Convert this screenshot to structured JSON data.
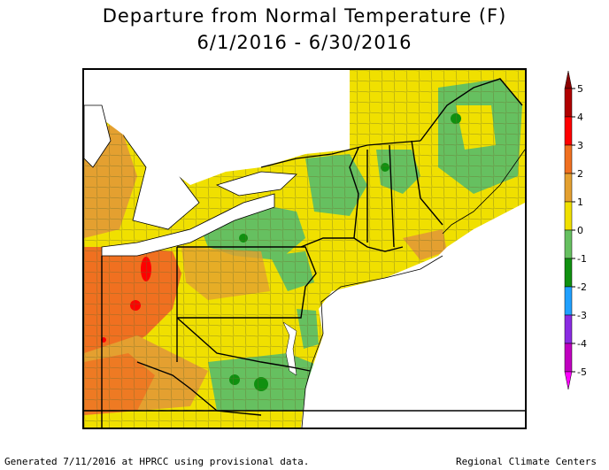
{
  "title": {
    "line1": "Departure from Normal Temperature (F)",
    "line2": "6/1/2016 - 6/30/2016"
  },
  "footer": {
    "left": "Generated 7/11/2016 at HPRCC using provisional data.",
    "right": "Regional Climate Centers"
  },
  "legend": {
    "ticks": [
      "5",
      "4",
      "3",
      "2",
      "1",
      "0",
      "-1",
      "-2",
      "-3",
      "-4",
      "-5"
    ],
    "bins": [
      {
        "range": "4 to 5",
        "color": "#b00000"
      },
      {
        "range": "3 to 4",
        "color": "#ff0000"
      },
      {
        "range": "2 to 3",
        "color": "#f07020"
      },
      {
        "range": "1 to 2",
        "color": "#e4a030"
      },
      {
        "range": "0 to 1",
        "color": "#f0e000"
      },
      {
        "range": "-1 to 0",
        "color": "#66c060"
      },
      {
        "range": "-2 to -1",
        "color": "#109010"
      },
      {
        "range": "-3 to -2",
        "color": "#20a0ff"
      },
      {
        "range": "-4 to -3",
        "color": "#8a2be2"
      },
      {
        "range": "-5 to -4",
        "color": "#c000c0"
      }
    ],
    "arrow_top_color": "#8b0000",
    "arrow_bottom_color": "#ff00ff"
  },
  "map": {
    "region": "Northeast United States",
    "period": "6/1/2016 - 6/30/2016",
    "variable": "Departure from Normal Temperature (F)",
    "water_color": "#ffffff",
    "border_color": "#000000",
    "county_line_color": "#6b6b2b"
  }
}
